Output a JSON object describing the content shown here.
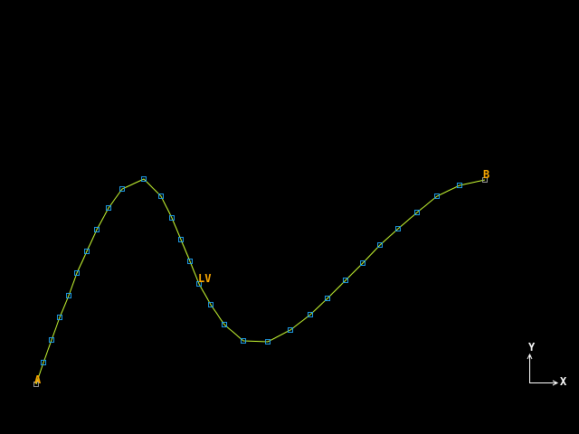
{
  "colors": {
    "background": "#000000",
    "curve": "#ccff33",
    "node": "#1e9be6",
    "label": "#ffaa00",
    "triad": "#ffffff"
  },
  "labels": {
    "start": "A",
    "mid": "LV",
    "end": "B"
  },
  "triad": {
    "x_label": "X",
    "y_label": "Y"
  }
}
